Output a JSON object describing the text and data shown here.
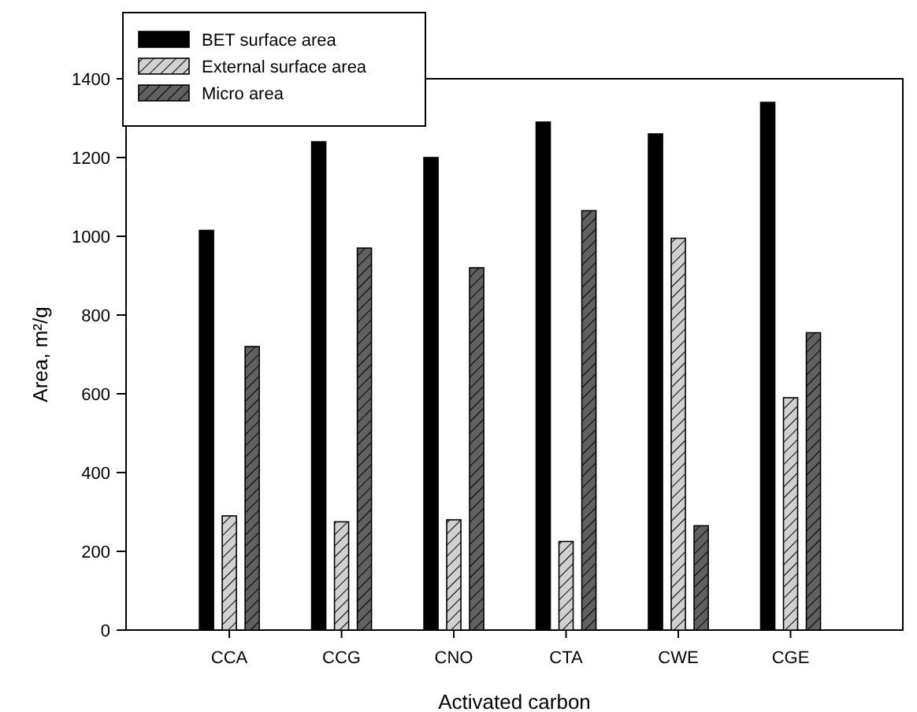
{
  "chart_data": {
    "type": "bar",
    "xlabel": "Activated carbon",
    "ylabel": "Area, m²/g",
    "categories": [
      "CCA",
      "CCG",
      "CNO",
      "CTA",
      "CWE",
      "CGE"
    ],
    "series": [
      {
        "name": "BET surface area",
        "color": "#000000",
        "values": [
          1015,
          1240,
          1200,
          1290,
          1260,
          1340
        ]
      },
      {
        "name": "External surface area",
        "color": "#d0d0d0",
        "values": [
          290,
          275,
          280,
          225,
          995,
          590
        ]
      },
      {
        "name": "Micro area",
        "color": "#606060",
        "values": [
          720,
          970,
          920,
          1065,
          265,
          755
        ]
      }
    ],
    "ylim": [
      0,
      1400
    ],
    "yticks": [
      0,
      200,
      400,
      600,
      800,
      1000,
      1200,
      1400
    ],
    "grid": false,
    "legend": "top left"
  }
}
